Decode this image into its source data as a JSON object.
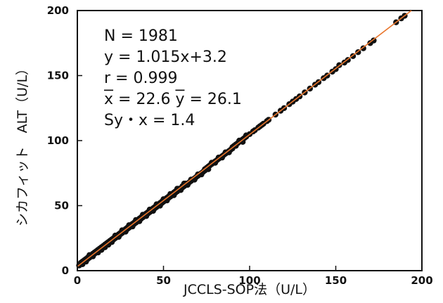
{
  "chart_data": {
    "type": "scatter",
    "title": "",
    "xlabel": "JCCLS-SOP法（U/L）",
    "ylabel": "シカフィット　ALT（U/L）",
    "xlim": [
      0,
      200
    ],
    "ylim": [
      0,
      200
    ],
    "x_ticks": [
      "0",
      "50",
      "100",
      "150",
      "200"
    ],
    "y_ticks": [
      "0",
      "50",
      "100",
      "150",
      "200"
    ],
    "grid": false,
    "regression": {
      "slope": 1.015,
      "intercept": 3.2,
      "color": "#e8742a"
    },
    "annotations": {
      "n": "N = 1981",
      "equation": "y = 1.015x+3.2",
      "r": "r = 0.999",
      "means": [
        "x",
        " = 22.6 ",
        "y",
        " = 26.1"
      ],
      "syx": "Sy・x = 1.4"
    },
    "point_color": "#111111",
    "points": [
      [
        1,
        4
      ],
      [
        2,
        5
      ],
      [
        2,
        6
      ],
      [
        3,
        6
      ],
      [
        3,
        7
      ],
      [
        4,
        7
      ],
      [
        4,
        8
      ],
      [
        5,
        8
      ],
      [
        5,
        9
      ],
      [
        6,
        9
      ],
      [
        6,
        10
      ],
      [
        7,
        10
      ],
      [
        7,
        11
      ],
      [
        8,
        11
      ],
      [
        8,
        12
      ],
      [
        9,
        13
      ],
      [
        9,
        12
      ],
      [
        10,
        13
      ],
      [
        10,
        14
      ],
      [
        11,
        14
      ],
      [
        11,
        15
      ],
      [
        12,
        15
      ],
      [
        12,
        16
      ],
      [
        13,
        16
      ],
      [
        13,
        17
      ],
      [
        14,
        17
      ],
      [
        14,
        18
      ],
      [
        15,
        18
      ],
      [
        15,
        19
      ],
      [
        16,
        19
      ],
      [
        16,
        20
      ],
      [
        17,
        20
      ],
      [
        17,
        21
      ],
      [
        18,
        21
      ],
      [
        18,
        22
      ],
      [
        19,
        22
      ],
      [
        19,
        23
      ],
      [
        20,
        23
      ],
      [
        20,
        24
      ],
      [
        21,
        24
      ],
      [
        21,
        25
      ],
      [
        22,
        25
      ],
      [
        22,
        26
      ],
      [
        23,
        26
      ],
      [
        23,
        27
      ],
      [
        24,
        27
      ],
      [
        24,
        28
      ],
      [
        25,
        28
      ],
      [
        25,
        29
      ],
      [
        26,
        29
      ],
      [
        26,
        30
      ],
      [
        27,
        30
      ],
      [
        27,
        31
      ],
      [
        28,
        31
      ],
      [
        28,
        32
      ],
      [
        29,
        32
      ],
      [
        29,
        33
      ],
      [
        30,
        33
      ],
      [
        30,
        34
      ],
      [
        31,
        34
      ],
      [
        31,
        35
      ],
      [
        32,
        35
      ],
      [
        32,
        36
      ],
      [
        33,
        36
      ],
      [
        33,
        37
      ],
      [
        34,
        37
      ],
      [
        34,
        38
      ],
      [
        35,
        38
      ],
      [
        35,
        39
      ],
      [
        36,
        39
      ],
      [
        36,
        40
      ],
      [
        37,
        40
      ],
      [
        37,
        41
      ],
      [
        38,
        41
      ],
      [
        38,
        42
      ],
      [
        39,
        42
      ],
      [
        39,
        43
      ],
      [
        40,
        43
      ],
      [
        40,
        44
      ],
      [
        41,
        44
      ],
      [
        41,
        45
      ],
      [
        42,
        45
      ],
      [
        42,
        46
      ],
      [
        43,
        46
      ],
      [
        43,
        47
      ],
      [
        44,
        47
      ],
      [
        44,
        48
      ],
      [
        45,
        48
      ],
      [
        45,
        49
      ],
      [
        46,
        49
      ],
      [
        46,
        50
      ],
      [
        47,
        50
      ],
      [
        47,
        51
      ],
      [
        48,
        51
      ],
      [
        48,
        52
      ],
      [
        49,
        52
      ],
      [
        49,
        53
      ],
      [
        50,
        53
      ],
      [
        50,
        54
      ],
      [
        51,
        54
      ],
      [
        51,
        55
      ],
      [
        52,
        55
      ],
      [
        52,
        56
      ],
      [
        53,
        56
      ],
      [
        53,
        57
      ],
      [
        54,
        57
      ],
      [
        54,
        58
      ],
      [
        55,
        58
      ],
      [
        55,
        59
      ],
      [
        56,
        59
      ],
      [
        56,
        60
      ],
      [
        57,
        60
      ],
      [
        57,
        61
      ],
      [
        58,
        61
      ],
      [
        58,
        62
      ],
      [
        59,
        63
      ],
      [
        60,
        63
      ],
      [
        61,
        64
      ],
      [
        61,
        65
      ],
      [
        62,
        65
      ],
      [
        63,
        66
      ],
      [
        63,
        67
      ],
      [
        64,
        67
      ],
      [
        65,
        68
      ],
      [
        66,
        69
      ],
      [
        67,
        70
      ],
      [
        68,
        71
      ],
      [
        69,
        72
      ],
      [
        70,
        73
      ],
      [
        71,
        74
      ],
      [
        72,
        75
      ],
      [
        73,
        76
      ],
      [
        74,
        77
      ],
      [
        75,
        79
      ],
      [
        76,
        80
      ],
      [
        77,
        81
      ],
      [
        78,
        82
      ],
      [
        79,
        83
      ],
      [
        80,
        84
      ],
      [
        81,
        85
      ],
      [
        82,
        86
      ],
      [
        83,
        87
      ],
      [
        84,
        88
      ],
      [
        85,
        89
      ],
      [
        86,
        90
      ],
      [
        87,
        91
      ],
      [
        88,
        92
      ],
      [
        89,
        93
      ],
      [
        90,
        95
      ],
      [
        91,
        96
      ],
      [
        92,
        97
      ],
      [
        93,
        98
      ],
      [
        94,
        99
      ],
      [
        95,
        100
      ],
      [
        96,
        101
      ],
      [
        97,
        102
      ],
      [
        98,
        103
      ],
      [
        100,
        105
      ],
      [
        102,
        107
      ],
      [
        103,
        108
      ],
      [
        105,
        110
      ],
      [
        106,
        111
      ],
      [
        107,
        112
      ],
      [
        108,
        113
      ],
      [
        110,
        115
      ],
      [
        111,
        116
      ],
      [
        115,
        120
      ],
      [
        118,
        123
      ],
      [
        120,
        125
      ],
      [
        123,
        128
      ],
      [
        125,
        130
      ],
      [
        127,
        132
      ],
      [
        129,
        134
      ],
      [
        132,
        137
      ],
      [
        135,
        140
      ],
      [
        138,
        143
      ],
      [
        140,
        145
      ],
      [
        143,
        148
      ],
      [
        145,
        150
      ],
      [
        148,
        153
      ],
      [
        150,
        155
      ],
      [
        152,
        158
      ],
      [
        155,
        160
      ],
      [
        157,
        162
      ],
      [
        160,
        165
      ],
      [
        163,
        168
      ],
      [
        166,
        171
      ],
      [
        170,
        175
      ],
      [
        172,
        177
      ],
      [
        185,
        191
      ],
      [
        188,
        194
      ],
      [
        190,
        196
      ],
      [
        3,
        5
      ],
      [
        5,
        7
      ],
      [
        7,
        12
      ],
      [
        9,
        11
      ],
      [
        12,
        14
      ],
      [
        14,
        16
      ],
      [
        16,
        18
      ],
      [
        18,
        20
      ],
      [
        20,
        22
      ],
      [
        22,
        27
      ],
      [
        24,
        26
      ],
      [
        26,
        31
      ],
      [
        28,
        30
      ],
      [
        30,
        35
      ],
      [
        32,
        34
      ],
      [
        34,
        39
      ],
      [
        36,
        38
      ],
      [
        38,
        43
      ],
      [
        40,
        42
      ],
      [
        42,
        47
      ],
      [
        44,
        46
      ],
      [
        46,
        51
      ],
      [
        48,
        50
      ],
      [
        50,
        55
      ],
      [
        52,
        54
      ],
      [
        54,
        59
      ],
      [
        56,
        58
      ],
      [
        58,
        63
      ],
      [
        60,
        62
      ],
      [
        62,
        67
      ],
      [
        64,
        66
      ],
      [
        66,
        70
      ],
      [
        68,
        70
      ],
      [
        70,
        74
      ],
      [
        72,
        74
      ],
      [
        74,
        78
      ],
      [
        76,
        78
      ],
      [
        78,
        83
      ],
      [
        80,
        83
      ],
      [
        82,
        87
      ],
      [
        84,
        87
      ],
      [
        86,
        91
      ],
      [
        88,
        91
      ],
      [
        90,
        94
      ],
      [
        92,
        96
      ],
      [
        94,
        100
      ],
      [
        96,
        99
      ],
      [
        98,
        104
      ]
    ]
  }
}
